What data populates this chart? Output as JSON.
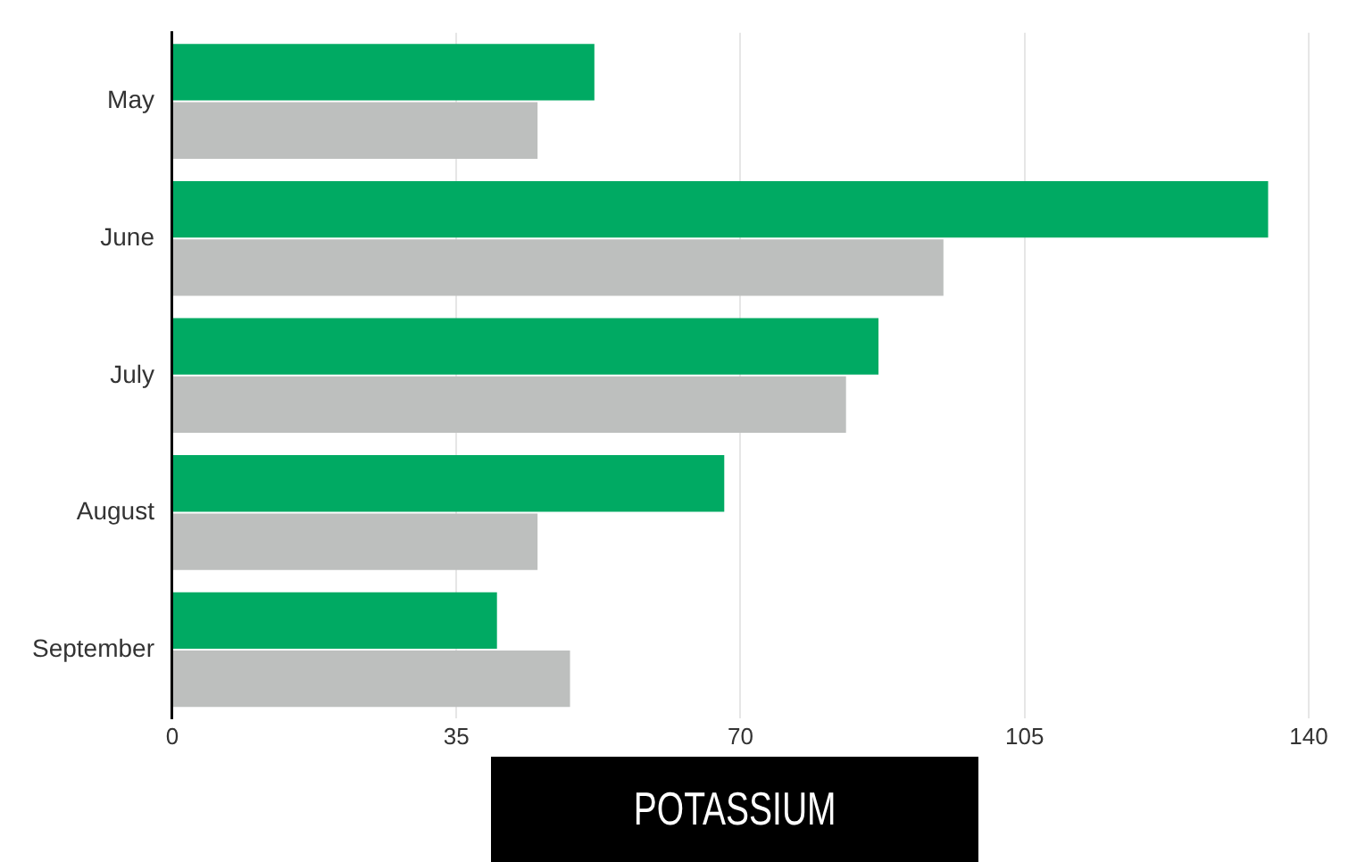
{
  "chart_data": {
    "type": "bar",
    "orientation": "horizontal",
    "title": "POTASSIUM",
    "categories": [
      "May",
      "June",
      "July",
      "August",
      "September"
    ],
    "series": [
      {
        "color": "#00aa63",
        "values": [
          52,
          135,
          87,
          68,
          40
        ]
      },
      {
        "color": "#bdbfbe",
        "values": [
          45,
          95,
          83,
          45,
          49
        ]
      }
    ],
    "xlim": [
      0,
      140
    ],
    "xticks": [
      0,
      35,
      70,
      105,
      140
    ],
    "grid": "x",
    "legend": false
  }
}
